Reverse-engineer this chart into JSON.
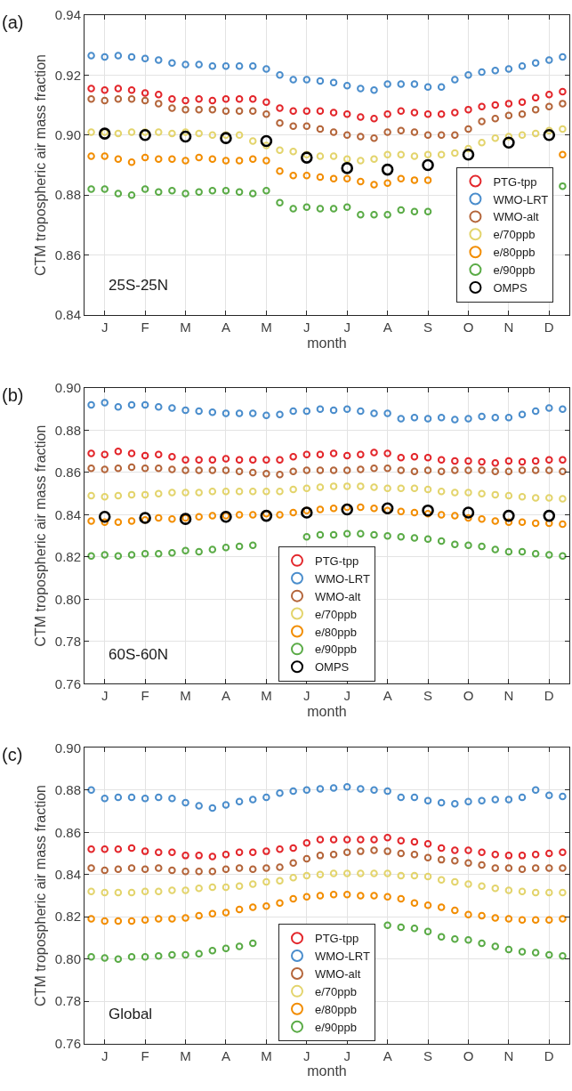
{
  "chart_data": [
    {
      "type": "scatter",
      "title": "(a)",
      "xlabel": "month",
      "ylabel": "CTM tropospheric air mass fraction",
      "annotations": [
        "25S-25N"
      ],
      "categories": [
        null,
        "J",
        null,
        null,
        "F",
        null,
        null,
        "M",
        null,
        null,
        "A",
        null,
        null,
        "M",
        null,
        null,
        "J",
        null,
        null,
        "J",
        null,
        null,
        "A",
        null,
        null,
        "S",
        null,
        null,
        "O",
        null,
        null,
        "N",
        null,
        null,
        "D",
        null
      ],
      "ylim": [
        0.84,
        0.94
      ],
      "yticks": [
        {
          "value": 0.84,
          "label": "0.84"
        },
        {
          "value": 0.86,
          "label": "0.86"
        },
        {
          "value": 0.88,
          "label": "0.88"
        },
        {
          "value": 0.9,
          "label": "0.90"
        },
        {
          "value": 0.92,
          "label": "0.92"
        },
        {
          "value": 0.94,
          "label": "0.94"
        }
      ],
      "grid": true,
      "legend": "bottom right",
      "marker": "circle",
      "series": [
        {
          "name": "PTG-tpp",
          "color": "#e3262b",
          "values": [
            0.9155,
            0.915,
            0.9155,
            0.915,
            0.914,
            0.9135,
            0.912,
            0.9115,
            0.912,
            0.9115,
            0.912,
            0.912,
            0.912,
            0.911,
            0.909,
            0.908,
            0.908,
            0.908,
            0.9075,
            0.907,
            0.906,
            0.9055,
            0.907,
            0.908,
            0.9075,
            0.907,
            0.907,
            0.9075,
            0.9085,
            0.9095,
            0.91,
            0.9105,
            0.911,
            0.9125,
            0.9135,
            0.9145
          ]
        },
        {
          "name": "WMO-LRT",
          "color": "#4a8dcc",
          "values": [
            0.9265,
            0.926,
            0.9265,
            0.926,
            0.9255,
            0.925,
            0.924,
            0.9235,
            0.9235,
            0.923,
            0.923,
            0.923,
            0.923,
            0.922,
            0.92,
            0.9185,
            0.9185,
            0.918,
            0.9175,
            0.9165,
            0.9155,
            0.915,
            0.917,
            0.917,
            0.917,
            0.916,
            0.916,
            0.9185,
            0.92,
            0.921,
            0.9215,
            0.922,
            0.923,
            0.924,
            0.925,
            0.926
          ]
        },
        {
          "name": "WMO-alt",
          "color": "#b4653a",
          "values": [
            0.912,
            0.9115,
            0.912,
            0.912,
            0.9115,
            0.9105,
            0.909,
            0.9085,
            0.9085,
            0.9085,
            0.908,
            0.908,
            0.908,
            0.907,
            0.904,
            0.903,
            0.903,
            0.902,
            0.901,
            0.9,
            0.8995,
            0.899,
            0.901,
            0.9015,
            0.901,
            0.9,
            0.9,
            0.9,
            0.902,
            0.9045,
            0.9055,
            0.9065,
            0.907,
            0.9085,
            0.9095,
            0.9105
          ]
        },
        {
          "name": "e/70ppb",
          "color": "#e3d46c",
          "values": [
            0.901,
            0.901,
            0.9005,
            0.901,
            0.901,
            0.901,
            0.9005,
            0.901,
            0.9005,
            0.9,
            0.9,
            0.9,
            0.898,
            0.8965,
            0.895,
            0.8945,
            0.8935,
            0.893,
            0.893,
            0.892,
            0.8915,
            0.892,
            0.8935,
            0.8935,
            0.893,
            0.8935,
            0.8935,
            0.894,
            0.8955,
            0.8975,
            0.899,
            0.8995,
            0.9,
            0.9005,
            0.9015,
            0.902
          ]
        },
        {
          "name": "e/80ppb",
          "color": "#f28d00",
          "values": [
            0.893,
            0.893,
            0.892,
            0.891,
            0.8925,
            0.892,
            0.892,
            0.8915,
            0.8925,
            0.892,
            0.8915,
            0.8915,
            0.892,
            0.8915,
            0.888,
            0.8865,
            0.8865,
            0.886,
            0.8855,
            0.8855,
            0.8845,
            0.8835,
            0.884,
            0.8855,
            0.885,
            0.885,
            null,
            null,
            null,
            null,
            null,
            null,
            null,
            null,
            null,
            0.8935
          ]
        },
        {
          "name": "e/90ppb",
          "color": "#5aab46",
          "values": [
            0.882,
            0.882,
            0.8805,
            0.88,
            0.882,
            0.881,
            0.8815,
            0.8805,
            0.881,
            0.8815,
            0.8815,
            0.881,
            0.8805,
            0.8815,
            0.8775,
            0.8755,
            0.876,
            0.8755,
            0.8755,
            0.876,
            0.8735,
            0.8735,
            0.8735,
            0.875,
            0.8745,
            0.8745,
            null,
            null,
            null,
            null,
            null,
            null,
            null,
            null,
            null,
            0.883
          ]
        },
        {
          "name": "OMPS",
          "color": "#000000",
          "values": [
            null,
            0.9005,
            null,
            null,
            0.9,
            null,
            null,
            0.8995,
            null,
            null,
            0.899,
            null,
            null,
            0.898,
            null,
            null,
            0.8925,
            null,
            null,
            0.889,
            null,
            null,
            0.8885,
            null,
            null,
            0.89,
            null,
            null,
            0.8935,
            null,
            null,
            0.8975,
            null,
            null,
            0.9,
            null
          ]
        }
      ]
    },
    {
      "type": "scatter",
      "title": "(b)",
      "xlabel": "month",
      "ylabel": "CTM tropospheric air mass fraction",
      "annotations": [
        "60S-60N"
      ],
      "categories": [
        null,
        "J",
        null,
        null,
        "F",
        null,
        null,
        "M",
        null,
        null,
        "A",
        null,
        null,
        "M",
        null,
        null,
        "J",
        null,
        null,
        "J",
        null,
        null,
        "A",
        null,
        null,
        "S",
        null,
        null,
        "O",
        null,
        null,
        "N",
        null,
        null,
        "D",
        null
      ],
      "ylim": [
        0.76,
        0.9
      ],
      "yticks": [
        {
          "value": 0.76,
          "label": "0.76"
        },
        {
          "value": 0.78,
          "label": "0.78"
        },
        {
          "value": 0.8,
          "label": "0.80"
        },
        {
          "value": 0.82,
          "label": "0.82"
        },
        {
          "value": 0.84,
          "label": "0.84"
        },
        {
          "value": 0.86,
          "label": "0.86"
        },
        {
          "value": 0.88,
          "label": "0.88"
        },
        {
          "value": 0.9,
          "label": "0.90"
        }
      ],
      "grid": true,
      "legend": "bottom",
      "marker": "circle",
      "series": [
        {
          "name": "PTG-tpp",
          "color": "#e3262b",
          "values": [
            0.869,
            0.8685,
            0.87,
            0.869,
            0.868,
            0.8685,
            0.8675,
            0.866,
            0.866,
            0.866,
            0.8665,
            0.866,
            0.866,
            0.866,
            0.866,
            0.8675,
            0.8685,
            0.8685,
            0.869,
            0.868,
            0.8685,
            0.8695,
            0.869,
            0.867,
            0.8675,
            0.867,
            0.866,
            0.8655,
            0.8655,
            0.865,
            0.8645,
            0.8655,
            0.865,
            0.8655,
            0.866,
            0.866
          ]
        },
        {
          "name": "WMO-LRT",
          "color": "#4a8dcc",
          "values": [
            0.892,
            0.893,
            0.891,
            0.892,
            0.892,
            0.891,
            0.8905,
            0.8895,
            0.889,
            0.8885,
            0.888,
            0.888,
            0.888,
            0.887,
            0.8875,
            0.889,
            0.889,
            0.89,
            0.8895,
            0.89,
            0.889,
            0.888,
            0.888,
            0.8855,
            0.886,
            0.8855,
            0.886,
            0.885,
            0.8855,
            0.8865,
            0.886,
            0.886,
            0.8875,
            0.889,
            0.8905,
            0.89
          ]
        },
        {
          "name": "WMO-alt",
          "color": "#b4653a",
          "values": [
            0.862,
            0.8615,
            0.862,
            0.8625,
            0.862,
            0.862,
            0.8615,
            0.861,
            0.861,
            0.861,
            0.861,
            0.8605,
            0.86,
            0.8595,
            0.859,
            0.8605,
            0.861,
            0.861,
            0.861,
            0.861,
            0.8615,
            0.862,
            0.862,
            0.861,
            0.8605,
            0.861,
            0.8605,
            0.861,
            0.861,
            0.861,
            0.8605,
            0.8605,
            0.861,
            0.861,
            0.861,
            0.8605
          ]
        },
        {
          "name": "e/70ppb",
          "color": "#e3d46c",
          "values": [
            0.849,
            0.8485,
            0.849,
            0.8495,
            0.8495,
            0.85,
            0.8505,
            0.8505,
            0.8505,
            0.851,
            0.851,
            0.851,
            0.851,
            0.851,
            0.851,
            0.852,
            0.8525,
            0.853,
            0.8535,
            0.8535,
            0.8535,
            0.853,
            0.8525,
            0.8525,
            0.8525,
            0.852,
            0.851,
            0.8505,
            0.8505,
            0.85,
            0.8495,
            0.849,
            0.8485,
            0.848,
            0.848,
            0.8475
          ]
        },
        {
          "name": "e/80ppb",
          "color": "#f28d00",
          "values": [
            0.837,
            0.8365,
            0.8365,
            0.837,
            0.8375,
            0.8385,
            0.838,
            0.8385,
            0.839,
            0.8395,
            0.8395,
            0.84,
            0.84,
            0.8405,
            0.84,
            0.841,
            0.842,
            0.8425,
            0.843,
            0.8435,
            0.8435,
            0.843,
            0.842,
            0.8415,
            0.841,
            0.8405,
            0.84,
            0.8395,
            0.8385,
            0.838,
            0.837,
            0.8365,
            0.8365,
            0.836,
            0.836,
            0.8355
          ]
        },
        {
          "name": "e/90ppb",
          "color": "#5aab46",
          "values": [
            0.8205,
            0.821,
            0.8205,
            0.821,
            0.8215,
            0.8215,
            0.822,
            0.823,
            0.8225,
            0.8235,
            0.8245,
            0.825,
            0.8255,
            null,
            null,
            null,
            0.8295,
            0.8305,
            0.8305,
            0.831,
            0.831,
            0.8305,
            0.83,
            0.8295,
            0.829,
            0.8285,
            0.8275,
            0.826,
            0.8255,
            0.825,
            0.8235,
            0.8225,
            0.8225,
            0.8215,
            0.821,
            0.8205
          ]
        },
        {
          "name": "OMPS",
          "color": "#000000",
          "values": [
            null,
            0.839,
            null,
            null,
            0.8385,
            null,
            null,
            0.838,
            null,
            null,
            0.839,
            null,
            null,
            0.8395,
            null,
            null,
            0.841,
            null,
            null,
            0.8425,
            null,
            null,
            0.843,
            null,
            null,
            0.842,
            null,
            null,
            0.841,
            null,
            null,
            0.8395,
            null,
            null,
            0.8395,
            null
          ]
        }
      ]
    },
    {
      "type": "scatter",
      "title": "(c)",
      "xlabel": "month",
      "ylabel": "CTM tropospheric air mass fraction",
      "annotations": [
        "Global"
      ],
      "categories": [
        null,
        "J",
        null,
        null,
        "F",
        null,
        null,
        "M",
        null,
        null,
        "A",
        null,
        null,
        "M",
        null,
        null,
        "J",
        null,
        null,
        "J",
        null,
        null,
        "A",
        null,
        null,
        "S",
        null,
        null,
        "O",
        null,
        null,
        "N",
        null,
        null,
        "D",
        null
      ],
      "ylim": [
        0.76,
        0.9
      ],
      "yticks": [
        {
          "value": 0.76,
          "label": "0.76"
        },
        {
          "value": 0.78,
          "label": "0.78"
        },
        {
          "value": 0.8,
          "label": "0.80"
        },
        {
          "value": 0.82,
          "label": "0.82"
        },
        {
          "value": 0.84,
          "label": "0.84"
        },
        {
          "value": 0.86,
          "label": "0.86"
        },
        {
          "value": 0.88,
          "label": "0.88"
        },
        {
          "value": 0.9,
          "label": "0.90"
        }
      ],
      "grid": true,
      "legend": "bottom",
      "marker": "circle",
      "series": [
        {
          "name": "PTG-tpp",
          "color": "#e3262b",
          "values": [
            0.852,
            0.852,
            0.852,
            0.8525,
            0.851,
            0.8505,
            0.8505,
            0.849,
            0.849,
            0.8485,
            0.8495,
            0.8505,
            0.8505,
            0.851,
            0.852,
            0.8525,
            0.855,
            0.8565,
            0.8565,
            0.8565,
            0.8565,
            0.8565,
            0.8575,
            0.856,
            0.8555,
            0.8545,
            0.8525,
            0.8515,
            0.8515,
            0.8505,
            0.8495,
            0.849,
            0.849,
            0.8495,
            0.85,
            0.8505
          ]
        },
        {
          "name": "WMO-LRT",
          "color": "#4a8dcc",
          "values": [
            0.88,
            0.876,
            0.8765,
            0.8765,
            0.876,
            0.8765,
            0.876,
            0.874,
            0.8725,
            0.8715,
            0.873,
            0.8745,
            0.8755,
            0.8765,
            0.8785,
            0.8795,
            0.88,
            0.8805,
            0.881,
            0.8815,
            0.8805,
            0.88,
            0.8795,
            0.8765,
            0.8765,
            0.875,
            0.874,
            0.8735,
            0.8745,
            0.875,
            0.8755,
            0.8755,
            0.8765,
            0.88,
            0.8775,
            0.877
          ]
        },
        {
          "name": "WMO-alt",
          "color": "#b4653a",
          "values": [
            0.843,
            0.842,
            0.8425,
            0.843,
            0.8425,
            0.843,
            0.842,
            0.8415,
            0.8415,
            0.8415,
            0.8425,
            0.843,
            0.8425,
            0.843,
            0.8435,
            0.8455,
            0.8475,
            0.849,
            0.8495,
            0.8505,
            0.851,
            0.8515,
            0.851,
            0.85,
            0.8495,
            0.848,
            0.847,
            0.8465,
            0.8455,
            0.8445,
            0.843,
            0.843,
            0.8425,
            0.843,
            0.843,
            0.843
          ]
        },
        {
          "name": "e/70ppb",
          "color": "#e3d46c",
          "values": [
            0.832,
            0.8315,
            0.8315,
            0.8315,
            0.832,
            0.832,
            0.8325,
            0.8325,
            0.8335,
            0.834,
            0.834,
            0.8345,
            0.8355,
            0.8365,
            0.837,
            0.8385,
            0.8395,
            0.84,
            0.8405,
            0.8405,
            0.8405,
            0.8405,
            0.8405,
            0.8395,
            0.8395,
            0.839,
            0.8375,
            0.8365,
            0.8355,
            0.8345,
            0.8335,
            0.8325,
            0.832,
            0.8315,
            0.8315,
            0.8315
          ]
        },
        {
          "name": "e/80ppb",
          "color": "#f28d00",
          "values": [
            0.819,
            0.818,
            0.818,
            0.818,
            0.8185,
            0.819,
            0.819,
            0.8195,
            0.8205,
            0.8215,
            0.822,
            0.8235,
            0.8245,
            0.825,
            0.8265,
            0.8285,
            0.8295,
            0.83,
            0.8305,
            0.8305,
            0.83,
            0.83,
            0.8295,
            0.8285,
            0.8265,
            0.8255,
            0.8245,
            0.823,
            0.821,
            0.8205,
            0.8195,
            0.819,
            0.8185,
            0.8185,
            0.8185,
            0.819
          ]
        },
        {
          "name": "e/90ppb",
          "color": "#5aab46",
          "values": [
            0.801,
            0.8005,
            0.8,
            0.801,
            0.801,
            0.8015,
            0.802,
            0.802,
            0.8025,
            0.804,
            0.805,
            0.806,
            0.8075,
            null,
            null,
            null,
            null,
            null,
            null,
            null,
            null,
            null,
            0.816,
            0.815,
            0.8145,
            0.813,
            0.8105,
            0.8095,
            0.809,
            0.8075,
            0.806,
            0.8045,
            0.8035,
            0.803,
            0.802,
            0.8015
          ]
        }
      ]
    }
  ]
}
